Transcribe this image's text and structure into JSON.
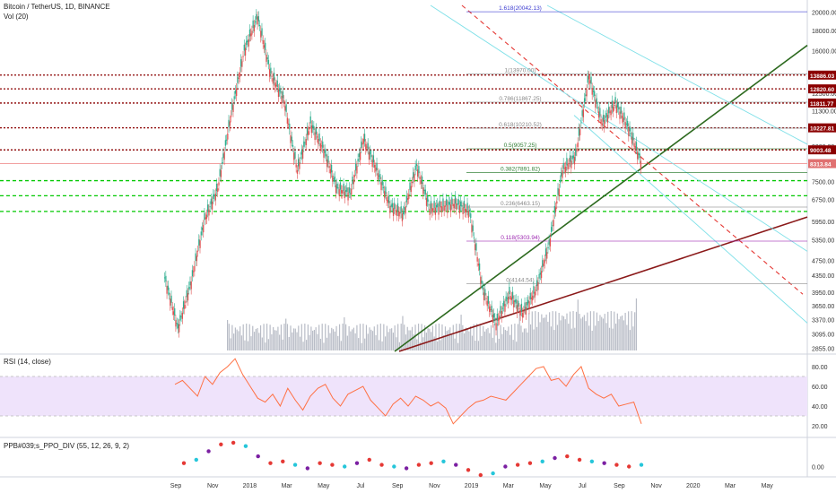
{
  "header": {
    "title": "Bitcoin / TetherUS, 1D, BINANCE",
    "volume_label": "Vol (20)"
  },
  "panes": {
    "rsi_label": "RSI (14, close)",
    "ppo_label": "PPB#039;s_PPO_DIV (55, 12, 26, 9, 2)"
  },
  "chart_data": [
    {
      "type": "line",
      "title": "Bitcoin / TetherUS, 1D, BINANCE",
      "y_axis_ticks": [
        "20000.00",
        "18000.00",
        "16000.00",
        "14000.00",
        "12500.00",
        "11300.00",
        "10200.00",
        "9200.00",
        "8300.00",
        "7500.00",
        "6750.00",
        "5950.00",
        "5350.00",
        "4750.00",
        "4350.00",
        "3950.00",
        "3650.00",
        "3370.00",
        "3095.00",
        "2855.00"
      ],
      "y_scale": "log",
      "ylim": [
        2800,
        20800
      ],
      "x_axis_ticks": [
        "Sep",
        "Nov",
        "2018",
        "Mar",
        "May",
        "Jul",
        "Sep",
        "Nov",
        "2019",
        "Mar",
        "May",
        "Jul",
        "Sep",
        "Nov",
        "2020",
        "Mar",
        "May"
      ],
      "price_path": [
        [
          "Sep",
          4300
        ],
        [
          "Sep",
          3200
        ],
        [
          "Oct",
          4200
        ],
        [
          "Oct",
          6000
        ],
        [
          "Nov",
          7200
        ],
        [
          "Nov",
          11000
        ],
        [
          "Dec",
          16000
        ],
        [
          "Dec",
          19500
        ],
        [
          "2018",
          14000
        ],
        [
          "2018",
          12000
        ],
        [
          "Feb",
          8000
        ],
        [
          "Feb",
          10500
        ],
        [
          "Mar",
          9000
        ],
        [
          "Mar",
          7200
        ],
        [
          "Apr",
          7000
        ],
        [
          "May",
          9600
        ],
        [
          "May",
          8000
        ],
        [
          "Jun",
          6500
        ],
        [
          "Jul",
          6200
        ],
        [
          "Jul",
          8200
        ],
        [
          "Aug",
          6400
        ],
        [
          "Sep",
          6500
        ],
        [
          "Oct",
          6600
        ],
        [
          "Nov",
          6300
        ],
        [
          "Nov",
          4000
        ],
        [
          "Dec",
          3300
        ],
        [
          "2019",
          3900
        ],
        [
          "Feb",
          3500
        ],
        [
          "Mar",
          4000
        ],
        [
          "Apr",
          5200
        ],
        [
          "May",
          8000
        ],
        [
          "Jun",
          8700
        ],
        [
          "Jun",
          13800
        ],
        [
          "Jul",
          10500
        ],
        [
          "Aug",
          11800
        ],
        [
          "Sep",
          10200
        ],
        [
          "Sep",
          8300
        ]
      ],
      "price_labels": [
        {
          "text": "13886.03",
          "value": 13886.03,
          "color": "#8b0000"
        },
        {
          "text": "12820.60",
          "value": 12820.6,
          "color": "#8b0000"
        },
        {
          "text": "11811.77",
          "value": 11811.77,
          "color": "#8b0000"
        },
        {
          "text": "10227.81",
          "value": 10227.81,
          "color": "#8b0000"
        },
        {
          "text": "9003.48",
          "value": 9003.48,
          "color": "#8b0000"
        },
        {
          "text": "8313.84",
          "value": 8313.84,
          "color": "#e07070"
        }
      ],
      "red_horizontal_levels": [
        13886.03,
        12820.6,
        11811.77,
        10227.81,
        9003.48
      ],
      "green_horizontal_levels": [
        7530,
        6900,
        6300
      ],
      "fib_labels": [
        {
          "text": "1.618(20042.13)",
          "value": 20042.13,
          "color": "#3b3bd0"
        },
        {
          "text": "1(13970.00)",
          "value": 13970,
          "color": "#888888"
        },
        {
          "text": "0.786(11867.25)",
          "value": 11867.25,
          "color": "#888888"
        },
        {
          "text": "0.618(10210.52)",
          "value": 10210.52,
          "color": "#888888"
        },
        {
          "text": "0.5(9057.25)",
          "value": 9057.25,
          "color": "#2e7d32"
        },
        {
          "text": "0.382(7891.82)",
          "value": 7891.82,
          "color": "#2e7d32"
        },
        {
          "text": "0.236(6463.15)",
          "value": 6463.15,
          "color": "#888888"
        },
        {
          "text": "0.118(5303.94)",
          "value": 5303.94,
          "color": "#9c27b0"
        },
        {
          "text": "0(4144.54)",
          "value": 4144.54,
          "color": "#888888"
        }
      ]
    },
    {
      "type": "line",
      "title": "RSI (14, close)",
      "y_axis_ticks": [
        "80.00",
        "60.00",
        "40.00",
        "20.00"
      ],
      "ylim": [
        10,
        90
      ],
      "band": [
        30,
        70
      ],
      "values": [
        62,
        66,
        58,
        50,
        70,
        62,
        74,
        80,
        88,
        72,
        60,
        48,
        44,
        52,
        40,
        58,
        46,
        36,
        50,
        58,
        62,
        48,
        40,
        52,
        56,
        60,
        46,
        38,
        30,
        42,
        48,
        40,
        50,
        46,
        40,
        44,
        38,
        22,
        30,
        38,
        44,
        46,
        50,
        48,
        46,
        54,
        62,
        70,
        78,
        80,
        66,
        68,
        60,
        72,
        80,
        58,
        52,
        48,
        52,
        40,
        42,
        44,
        22
      ]
    },
    {
      "type": "scatter",
      "title": "PPB#039;s_PPO_DIV (55, 12, 26, 9, 2)",
      "y_axis_ticks": [
        "0.00"
      ],
      "ylim": [
        -0.5,
        1.5
      ],
      "values": [
        0.2,
        0.4,
        0.9,
        1.3,
        1.4,
        1.2,
        0.6,
        0.2,
        0.3,
        0.1,
        -0.1,
        0.2,
        0.1,
        0.0,
        0.2,
        0.4,
        0.1,
        0.0,
        -0.1,
        0.1,
        0.2,
        0.3,
        0.1,
        -0.2,
        -0.5,
        -0.4,
        0.0,
        0.1,
        0.2,
        0.3,
        0.5,
        0.6,
        0.4,
        0.3,
        0.2,
        0.1,
        0.0,
        0.1
      ]
    }
  ]
}
